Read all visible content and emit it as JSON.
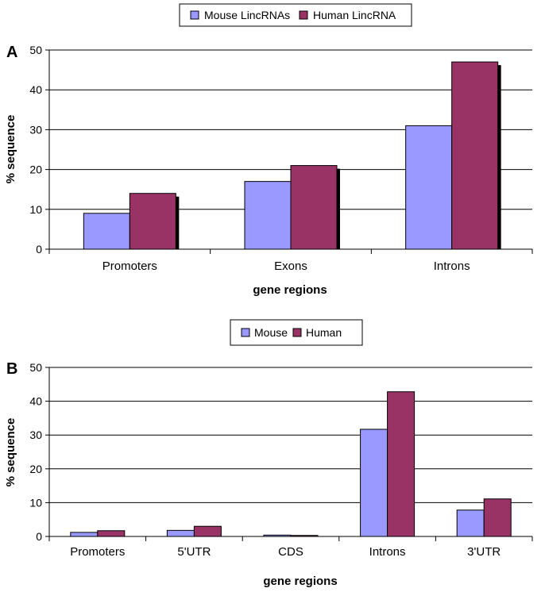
{
  "chart_data": [
    {
      "panel": "A",
      "type": "bar",
      "legend": [
        "Mouse LincRNAs",
        "Human LincRNA"
      ],
      "categories": [
        "Promoters",
        "Exons",
        "Introns"
      ],
      "series": [
        {
          "name": "Mouse LincRNAs",
          "values": [
            9,
            17,
            31
          ]
        },
        {
          "name": "Human LincRNA",
          "values": [
            14,
            21,
            47
          ]
        }
      ],
      "ylabel": "% sequence",
      "xlabel": "gene regions",
      "ylim": [
        0,
        50
      ],
      "yticks": [
        "0",
        "10",
        "20",
        "30",
        "40",
        "50"
      ],
      "legend_position": "top-center"
    },
    {
      "panel": "B",
      "type": "bar",
      "legend": [
        "Mouse",
        "Human"
      ],
      "categories": [
        "Promoters",
        "5'UTR",
        "CDS",
        "Introns",
        "3'UTR"
      ],
      "series": [
        {
          "name": "Mouse",
          "values": [
            1.2,
            1.8,
            0.4,
            31.7,
            7.8
          ]
        },
        {
          "name": "Human",
          "values": [
            1.7,
            3.0,
            0.3,
            42.8,
            11.1
          ]
        }
      ],
      "ylabel": "% sequence",
      "xlabel": "gene regions",
      "ylim": [
        0,
        50
      ],
      "yticks": [
        "0",
        "10",
        "20",
        "30",
        "40",
        "50"
      ],
      "legend_position": "top-center"
    }
  ],
  "colors": {
    "mouse": "#9999ff",
    "human": "#993366",
    "shadow": "#000000",
    "grid": "#000000"
  }
}
